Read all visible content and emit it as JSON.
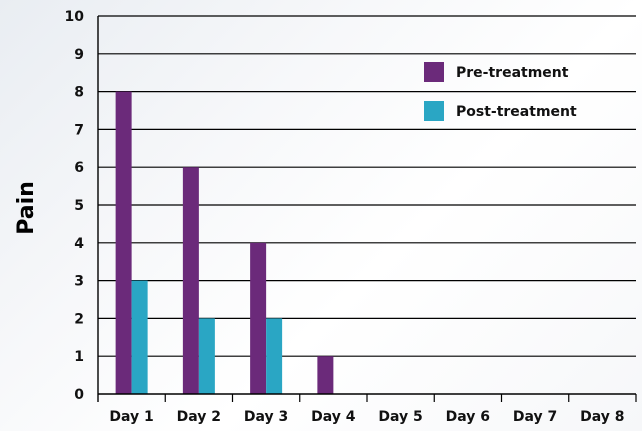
{
  "chart_data": {
    "type": "bar",
    "title": "",
    "xlabel": "",
    "ylabel": "Pain",
    "ylim": [
      0,
      10
    ],
    "yticks": [
      "0",
      "1",
      "2",
      "3",
      "4",
      "5",
      "6",
      "7",
      "8",
      "9",
      "10"
    ],
    "categories": [
      "Day 1",
      "Day 2",
      "Day 3",
      "Day 4",
      "Day 5",
      "Day 6",
      "Day 7",
      "Day 8"
    ],
    "series": [
      {
        "name": "Pre-treatment",
        "color": "#6b2a7a",
        "values": [
          8,
          6,
          4,
          1,
          null,
          null,
          null,
          null
        ]
      },
      {
        "name": "Post-treatment",
        "color": "#2aa6c4",
        "values": [
          3,
          2,
          2,
          null,
          null,
          null,
          null,
          null
        ]
      }
    ],
    "grid": true,
    "legend_position": "top-right"
  }
}
